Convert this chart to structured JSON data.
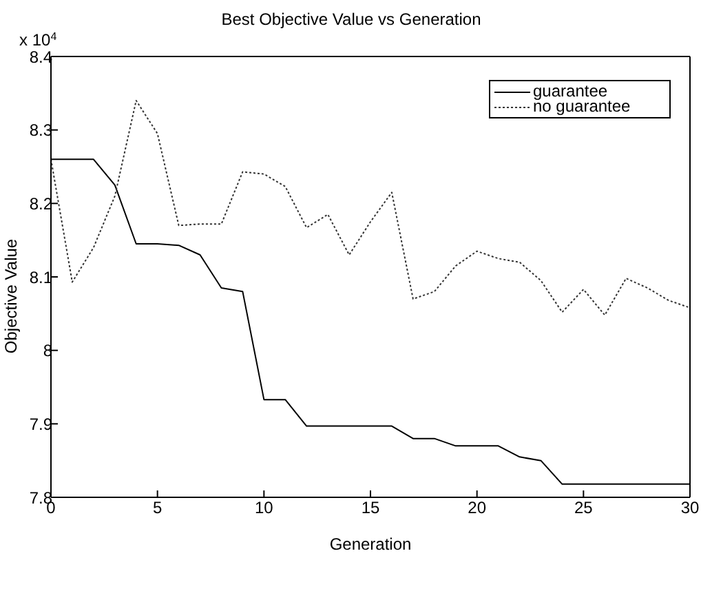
{
  "chart_data": {
    "type": "line",
    "title": "Best Objective Value vs Generation",
    "xlabel": "Generation",
    "ylabel": "Objective Value",
    "annotations": [
      "x 10$^{4}$"
    ],
    "x": [
      0,
      1,
      2,
      3,
      4,
      5,
      6,
      7,
      8,
      9,
      10,
      11,
      12,
      13,
      14,
      15,
      16,
      17,
      18,
      19,
      20,
      21,
      22,
      23,
      24,
      25,
      26,
      27,
      28,
      29,
      30
    ],
    "series": [
      {
        "name": "guarantee",
        "color": "#000000",
        "line_style": "solid",
        "values": [
          8.26,
          8.26,
          8.26,
          8.225,
          8.145,
          8.145,
          8.143,
          8.13,
          8.085,
          8.08,
          7.933,
          7.933,
          7.897,
          7.897,
          7.897,
          7.897,
          7.897,
          7.88,
          7.88,
          7.87,
          7.87,
          7.87,
          7.855,
          7.85,
          7.818,
          7.818,
          7.818,
          7.818,
          7.818,
          7.818,
          7.818
        ]
      },
      {
        "name": "no guarantee",
        "color": "#333333",
        "line_style": "dotted",
        "values": [
          8.26,
          8.093,
          8.14,
          8.21,
          8.34,
          8.295,
          8.17,
          8.172,
          8.172,
          8.243,
          8.24,
          8.223,
          8.167,
          8.185,
          8.13,
          8.175,
          8.215,
          8.07,
          8.08,
          8.115,
          8.135,
          8.125,
          8.12,
          8.095,
          8.052,
          8.083,
          8.048,
          8.098,
          8.085,
          8.068,
          8.058
        ]
      }
    ],
    "xlim": [
      0,
      30
    ],
    "xticks": [
      0,
      5,
      10,
      15,
      20,
      25,
      30
    ],
    "ylim": [
      7.8,
      8.4
    ],
    "yticks": [
      7.8,
      7.9,
      8,
      8.1,
      8.2,
      8.3,
      8.4
    ],
    "grid": false,
    "legend": "top right",
    "marker": "none"
  }
}
